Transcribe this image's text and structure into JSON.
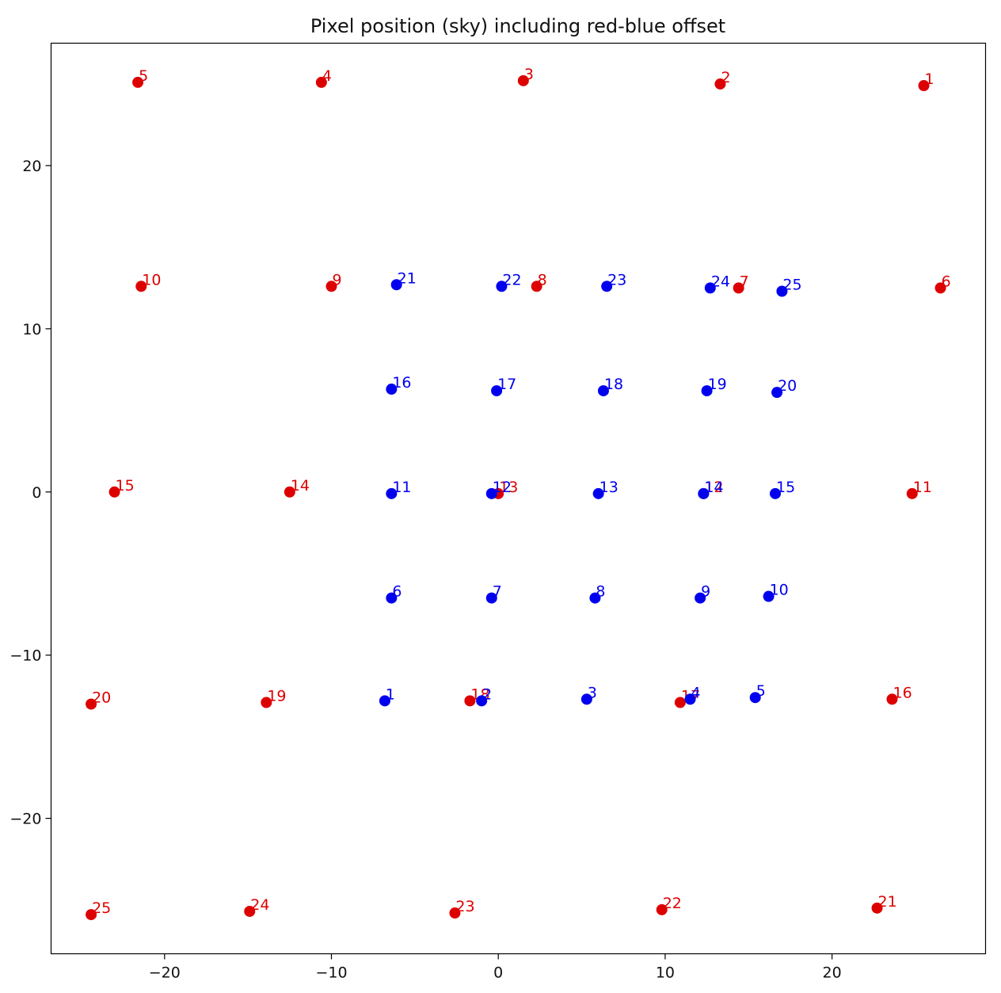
{
  "chart_data": {
    "type": "scatter",
    "title": "Pixel position (sky) including red-blue offset",
    "xlabel": "",
    "ylabel": "",
    "xlim": [
      -26.8,
      29.2
    ],
    "ylim": [
      -28.3,
      27.5
    ],
    "x_ticks": [
      -20,
      -10,
      0,
      10,
      20
    ],
    "y_ticks": [
      -20,
      -10,
      0,
      10,
      20
    ],
    "x_tick_labels": [
      "−20",
      "−10",
      "0",
      "10",
      "20"
    ],
    "y_tick_labels": [
      "−20",
      "−10",
      "0",
      "10",
      "20"
    ],
    "grid": false,
    "legend": "none",
    "series": [
      {
        "color": "#dd0000",
        "points": [
          {
            "label": "1",
            "x": 25.5,
            "y": 24.9
          },
          {
            "label": "2",
            "x": 13.3,
            "y": 25.0
          },
          {
            "label": "3",
            "x": 1.5,
            "y": 25.2
          },
          {
            "label": "4",
            "x": -10.6,
            "y": 25.1
          },
          {
            "label": "5",
            "x": -21.6,
            "y": 25.1
          },
          {
            "label": "6",
            "x": 26.5,
            "y": 12.5
          },
          {
            "label": "7",
            "x": 14.4,
            "y": 12.5
          },
          {
            "label": "8",
            "x": 2.3,
            "y": 12.6
          },
          {
            "label": "9",
            "x": -10.0,
            "y": 12.6
          },
          {
            "label": "10",
            "x": -21.4,
            "y": 12.6
          },
          {
            "label": "11",
            "x": 24.8,
            "y": -0.1
          },
          {
            "label": "12",
            "x": 12.3,
            "y": -0.1
          },
          {
            "label": "13",
            "x": 0.0,
            "y": -0.1
          },
          {
            "label": "14",
            "x": -12.5,
            "y": 0.0
          },
          {
            "label": "15",
            "x": -23.0,
            "y": 0.0
          },
          {
            "label": "16",
            "x": 23.6,
            "y": -12.7
          },
          {
            "label": "17",
            "x": 10.9,
            "y": -12.9
          },
          {
            "label": "18",
            "x": -1.7,
            "y": -12.8
          },
          {
            "label": "19",
            "x": -13.9,
            "y": -12.9
          },
          {
            "label": "20",
            "x": -24.4,
            "y": -13.0
          },
          {
            "label": "21",
            "x": 22.7,
            "y": -25.5
          },
          {
            "label": "22",
            "x": 9.8,
            "y": -25.6
          },
          {
            "label": "23",
            "x": -2.6,
            "y": -25.8
          },
          {
            "label": "24",
            "x": -14.9,
            "y": -25.7
          },
          {
            "label": "25",
            "x": -24.4,
            "y": -25.9
          }
        ]
      },
      {
        "color": "#0000ee",
        "points": [
          {
            "label": "1",
            "x": -6.8,
            "y": -12.8
          },
          {
            "label": "2",
            "x": -1.0,
            "y": -12.8
          },
          {
            "label": "3",
            "x": 5.3,
            "y": -12.7
          },
          {
            "label": "4",
            "x": 11.5,
            "y": -12.7
          },
          {
            "label": "5",
            "x": 15.4,
            "y": -12.6
          },
          {
            "label": "6",
            "x": -6.4,
            "y": -6.5
          },
          {
            "label": "7",
            "x": -0.4,
            "y": -6.5
          },
          {
            "label": "8",
            "x": 5.8,
            "y": -6.5
          },
          {
            "label": "9",
            "x": 12.1,
            "y": -6.5
          },
          {
            "label": "10",
            "x": 16.2,
            "y": -6.4
          },
          {
            "label": "11",
            "x": -6.4,
            "y": -0.1
          },
          {
            "label": "12",
            "x": -0.4,
            "y": -0.1
          },
          {
            "label": "13",
            "x": 6.0,
            "y": -0.1
          },
          {
            "label": "14",
            "x": 12.3,
            "y": -0.1
          },
          {
            "label": "15",
            "x": 16.6,
            "y": -0.1
          },
          {
            "label": "16",
            "x": -6.4,
            "y": 6.3
          },
          {
            "label": "17",
            "x": -0.1,
            "y": 6.2
          },
          {
            "label": "18",
            "x": 6.3,
            "y": 6.2
          },
          {
            "label": "19",
            "x": 12.5,
            "y": 6.2
          },
          {
            "label": "20",
            "x": 16.7,
            "y": 6.1
          },
          {
            "label": "21",
            "x": -6.1,
            "y": 12.7
          },
          {
            "label": "22",
            "x": 0.2,
            "y": 12.6
          },
          {
            "label": "23",
            "x": 6.5,
            "y": 12.6
          },
          {
            "label": "24",
            "x": 12.7,
            "y": 12.5
          },
          {
            "label": "25",
            "x": 17.0,
            "y": 12.3
          }
        ]
      }
    ]
  }
}
